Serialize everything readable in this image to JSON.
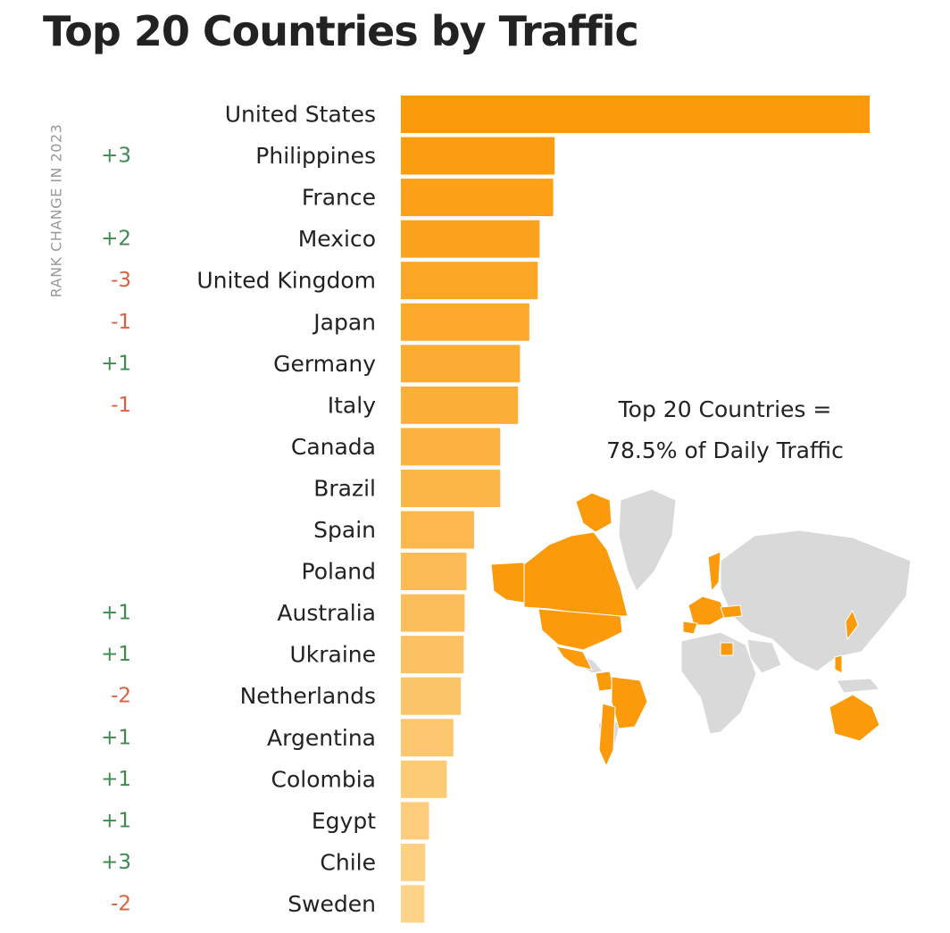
{
  "chart_data": {
    "type": "bar",
    "orientation": "horizontal",
    "title": "Top 20 Countries by Traffic",
    "side_label": "RANK CHANGE IN 2023",
    "categories": [
      "United States",
      "Philippines",
      "France",
      "Mexico",
      "United Kingdom",
      "Japan",
      "Germany",
      "Italy",
      "Canada",
      "Brazil",
      "Spain",
      "Poland",
      "Australia",
      "Ukraine",
      "Netherlands",
      "Argentina",
      "Colombia",
      "Egypt",
      "Chile",
      "Sweden"
    ],
    "values": [
      100,
      32.8,
      32.5,
      29.6,
      29.2,
      27.4,
      25.4,
      25.0,
      21.2,
      21.2,
      15.6,
      14.0,
      13.6,
      13.4,
      12.8,
      11.2,
      9.8,
      6.0,
      5.2,
      5.0
    ],
    "rank_change": [
      "",
      "+3",
      "",
      "+2",
      "-3",
      "-1",
      "+1",
      "-1",
      "",
      "",
      "",
      "",
      "+1",
      "+1",
      "-2",
      "+1",
      "+1",
      "+1",
      "+3",
      "-2"
    ],
    "xlim": [
      0,
      100
    ],
    "grid": false,
    "legend": "none",
    "annotation": {
      "line1": "Top 20 Countries =",
      "line2": "78.5% of Daily Traffic"
    },
    "colors": {
      "bar_top": "#fb9a0a",
      "bar_bottom": "#fdd38a",
      "positive": "#3f8a4e",
      "negative": "#d9613f",
      "map_gray": "#d9d9d9",
      "map_highlight": "#fb9a0a"
    }
  }
}
